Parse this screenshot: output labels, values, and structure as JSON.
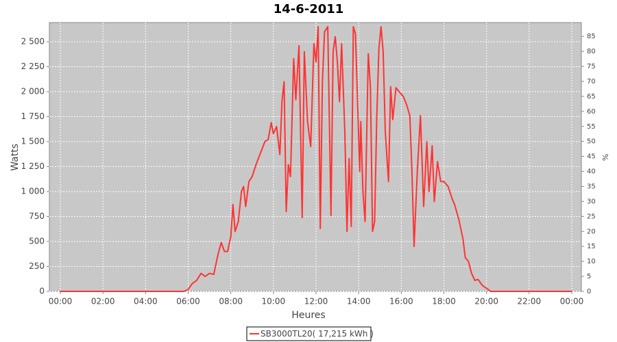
{
  "chart_data": {
    "type": "line",
    "title": "14-6-2011",
    "xlabel": "Heures",
    "ylabel": "Watts",
    "y2label": "%",
    "x": [
      0,
      5.8,
      6.0,
      6.2,
      6.4,
      6.6,
      6.8,
      7.0,
      7.2,
      7.4,
      7.55,
      7.7,
      7.85,
      8.0,
      8.1,
      8.2,
      8.35,
      8.5,
      8.6,
      8.7,
      8.85,
      9.0,
      9.2,
      9.4,
      9.6,
      9.75,
      9.9,
      10.0,
      10.15,
      10.3,
      10.4,
      10.5,
      10.6,
      10.7,
      10.8,
      10.95,
      11.05,
      11.2,
      11.35,
      11.45,
      11.6,
      11.75,
      11.9,
      12.0,
      12.1,
      12.2,
      12.3,
      12.4,
      12.55,
      12.7,
      12.8,
      12.9,
      13.0,
      13.1,
      13.2,
      13.35,
      13.45,
      13.55,
      13.65,
      13.75,
      13.85,
      13.95,
      14.05,
      14.1,
      14.2,
      14.3,
      14.45,
      14.55,
      14.65,
      14.75,
      14.85,
      14.95,
      15.05,
      15.15,
      15.25,
      15.4,
      15.5,
      15.6,
      15.75,
      15.9,
      16.1,
      16.25,
      16.4,
      16.5,
      16.6,
      16.75,
      16.9,
      17.05,
      17.2,
      17.3,
      17.45,
      17.55,
      17.7,
      17.85,
      18.0,
      18.2,
      18.4,
      18.5,
      18.7,
      18.9,
      19.0,
      19.15,
      19.3,
      19.45,
      19.6,
      19.8,
      20.0,
      20.2,
      24.0
    ],
    "series": [
      {
        "name": "SB3000TL20( 17,215 kWh )",
        "color": "#ff3333",
        "values": [
          0,
          0,
          20,
          80,
          110,
          180,
          150,
          180,
          170,
          370,
          490,
          400,
          400,
          550,
          870,
          600,
          700,
          1000,
          1050,
          850,
          1100,
          1150,
          1280,
          1390,
          1500,
          1520,
          1690,
          1580,
          1650,
          1370,
          1900,
          2100,
          800,
          1270,
          1150,
          2330,
          1920,
          2460,
          740,
          2400,
          1700,
          1450,
          2480,
          2300,
          2650,
          630,
          2100,
          2600,
          2650,
          760,
          2400,
          2550,
          2300,
          1900,
          2480,
          1600,
          600,
          1330,
          650,
          2650,
          2580,
          1900,
          1200,
          1700,
          1000,
          700,
          2380,
          2050,
          600,
          700,
          1750,
          2430,
          2650,
          2400,
          1600,
          1100,
          2050,
          1720,
          2040,
          2000,
          1950,
          1870,
          1760,
          1200,
          450,
          1200,
          1760,
          850,
          1500,
          1000,
          1460,
          900,
          1300,
          1100,
          1100,
          1050,
          920,
          870,
          720,
          520,
          340,
          300,
          180,
          110,
          120,
          60,
          30,
          0,
          0
        ]
      }
    ],
    "xlim": [
      -0.515,
      24.45
    ],
    "xticks": [
      {
        "value": 0,
        "label": "00:00"
      },
      {
        "value": 2,
        "label": "02:00"
      },
      {
        "value": 4,
        "label": "04:00"
      },
      {
        "value": 6,
        "label": "06:00"
      },
      {
        "value": 8,
        "label": "08:00"
      },
      {
        "value": 10,
        "label": "10:00"
      },
      {
        "value": 12,
        "label": "12:00"
      },
      {
        "value": 14,
        "label": "14:00"
      },
      {
        "value": 16,
        "label": "16:00"
      },
      {
        "value": 18,
        "label": "18:00"
      },
      {
        "value": 20,
        "label": "20:00"
      },
      {
        "value": 22,
        "label": "22:00"
      },
      {
        "value": 24,
        "label": "00:00"
      }
    ],
    "ylim": [
      0,
      2692
    ],
    "yticks": [
      0,
      250,
      500,
      750,
      {
        "value": 1000,
        "label": "1 000"
      },
      {
        "value": 1250,
        "label": "1 250"
      },
      {
        "value": 1500,
        "label": "1 500"
      },
      {
        "value": 1750,
        "label": "1 750"
      },
      {
        "value": 2000,
        "label": "2 000"
      },
      {
        "value": 2250,
        "label": "2 250"
      },
      {
        "value": 2500,
        "label": "2 500"
      }
    ],
    "y2lim": [
      0,
      89.6
    ],
    "y2ticks": [
      0,
      5,
      10,
      15,
      20,
      25,
      30,
      35,
      40,
      45,
      50,
      55,
      60,
      65,
      70,
      75,
      80,
      85
    ],
    "grid": true,
    "legend": "bottom"
  }
}
